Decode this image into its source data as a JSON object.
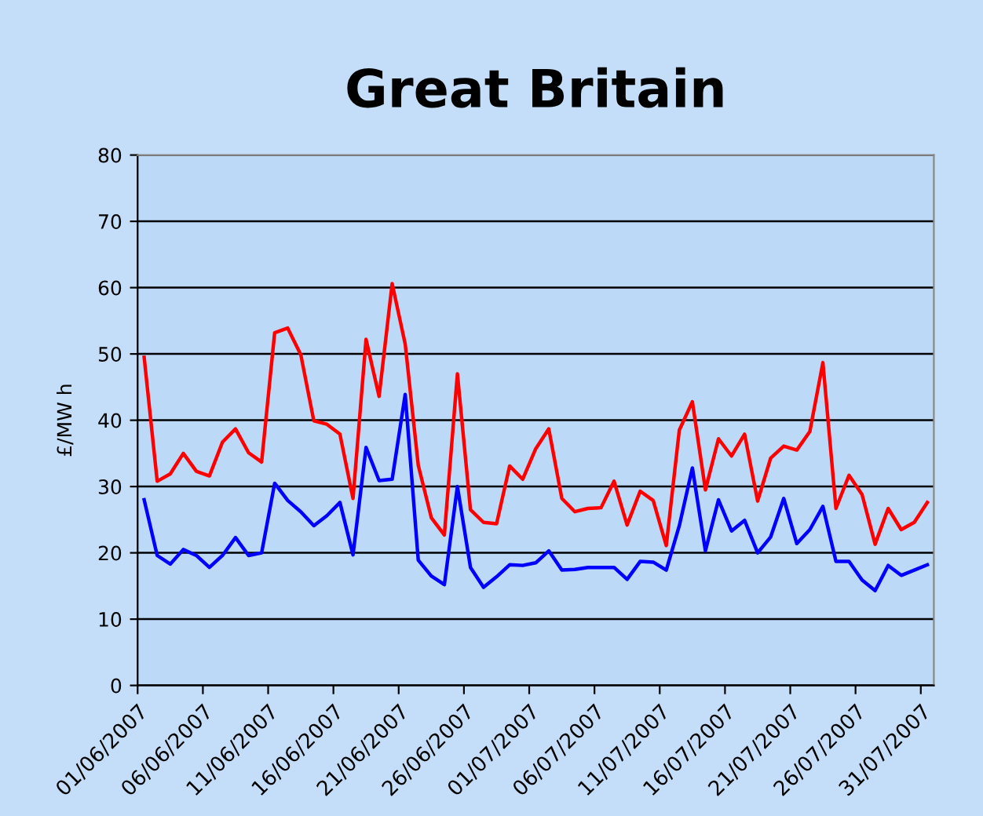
{
  "chart_data": {
    "type": "line",
    "title": "Great Britain",
    "ylabel": "£/MW h",
    "x": [
      "2007-06-01T12:00",
      "2007-06-02T12:00",
      "2007-06-03T12:00",
      "2007-06-04T12:00",
      "2007-06-05T12:00",
      "2007-06-06T12:00",
      "2007-06-07T12:00",
      "2007-06-08T12:00",
      "2007-06-09T12:00",
      "2007-06-10T12:00",
      "2007-06-11T12:00",
      "2007-06-12T12:00",
      "2007-06-13T12:00",
      "2007-06-14T12:00",
      "2007-06-15T12:00",
      "2007-06-16T12:00",
      "2007-06-17T12:00",
      "2007-06-18T12:00",
      "2007-06-19T12:00",
      "2007-06-20T12:00",
      "2007-06-21T12:00",
      "2007-06-22T12:00",
      "2007-06-23T12:00",
      "2007-06-24T12:00",
      "2007-06-25T12:00",
      "2007-06-26T12:00",
      "2007-06-27T12:00",
      "2007-06-28T12:00",
      "2007-06-29T12:00",
      "2007-06-30T12:00",
      "2007-07-01T12:00",
      "2007-07-02T12:00",
      "2007-07-03T12:00",
      "2007-07-04T12:00",
      "2007-07-05T12:00",
      "2007-07-06T12:00",
      "2007-07-07T12:00",
      "2007-07-08T12:00",
      "2007-07-09T12:00",
      "2007-07-10T12:00",
      "2007-07-11T12:00",
      "2007-07-12T12:00",
      "2007-07-13T12:00",
      "2007-07-14T12:00",
      "2007-07-15T12:00",
      "2007-07-16T12:00",
      "2007-07-17T12:00",
      "2007-07-18T12:00",
      "2007-07-19T12:00",
      "2007-07-20T12:00",
      "2007-07-21T12:00",
      "2007-07-22T12:00",
      "2007-07-23T12:00",
      "2007-07-24T12:00",
      "2007-07-25T12:00",
      "2007-07-26T12:00",
      "2007-07-27T12:00",
      "2007-07-28T12:00",
      "2007-07-29T12:00",
      "2007-07-30T12:00",
      "2007-07-31T12:00"
    ],
    "series": [
      {
        "color": "#ff0000",
        "values": [
          49.5,
          30.8,
          31.9,
          35.0,
          32.3,
          31.6,
          36.7,
          38.7,
          35.1,
          33.7,
          53.2,
          53.9,
          49.9,
          39.9,
          39.4,
          37.9,
          28.2,
          52.2,
          43.6,
          60.6,
          51.5,
          33.2,
          25.3,
          22.7,
          47.0,
          26.5,
          24.6,
          24.4,
          33.1,
          31.1,
          35.7,
          38.7,
          28.2,
          26.2,
          26.7,
          26.8,
          30.8,
          24.2,
          29.3,
          27.9,
          21.1,
          38.5,
          42.8,
          29.5,
          37.2,
          34.6,
          37.9,
          27.8,
          34.3,
          36.1,
          35.5,
          38.3,
          48.7,
          26.7,
          31.7,
          28.8,
          21.3,
          26.7,
          23.5,
          24.6,
          27.6
        ]
      },
      {
        "color": "#0000ff",
        "values": [
          28.0,
          19.6,
          18.3,
          20.5,
          19.6,
          17.8,
          19.6,
          22.3,
          19.6,
          20.0,
          30.5,
          27.9,
          26.2,
          24.1,
          25.6,
          27.6,
          19.7,
          35.9,
          30.9,
          31.1,
          43.9,
          18.9,
          16.5,
          15.2,
          30.0,
          17.8,
          14.8,
          16.4,
          18.2,
          18.1,
          18.5,
          20.3,
          17.4,
          17.5,
          17.8,
          17.8,
          17.8,
          16.0,
          18.7,
          18.6,
          17.4,
          24.1,
          32.8,
          20.3,
          28.0,
          23.3,
          24.9,
          20.0,
          22.4,
          28.2,
          21.4,
          23.5,
          27.0,
          18.7,
          18.7,
          15.9,
          14.3,
          18.1,
          16.6,
          17.4,
          18.2
        ]
      }
    ],
    "xlim": [
      "2007-06-01",
      "2007-08-01"
    ],
    "xticks": [
      {
        "value": "2007-06-01",
        "label": "01/06/2007"
      },
      {
        "value": "2007-06-06",
        "label": "06/06/2007"
      },
      {
        "value": "2007-06-11",
        "label": "11/06/2007"
      },
      {
        "value": "2007-06-16",
        "label": "16/06/2007"
      },
      {
        "value": "2007-06-21",
        "label": "21/06/2007"
      },
      {
        "value": "2007-06-26",
        "label": "26/06/2007"
      },
      {
        "value": "2007-07-01",
        "label": "01/07/2007"
      },
      {
        "value": "2007-07-06",
        "label": "06/07/2007"
      },
      {
        "value": "2007-07-11",
        "label": "11/07/2007"
      },
      {
        "value": "2007-07-16",
        "label": "16/07/2007"
      },
      {
        "value": "2007-07-21",
        "label": "21/07/2007"
      },
      {
        "value": "2007-07-26",
        "label": "26/07/2007"
      },
      {
        "value": "2007-07-31",
        "label": "31/07/2007"
      }
    ],
    "ylim": [
      0,
      80
    ],
    "yticks": [
      0,
      10,
      20,
      30,
      40,
      50,
      60,
      70,
      80
    ],
    "grid": "y",
    "marker": "none",
    "line_style": "solid"
  }
}
